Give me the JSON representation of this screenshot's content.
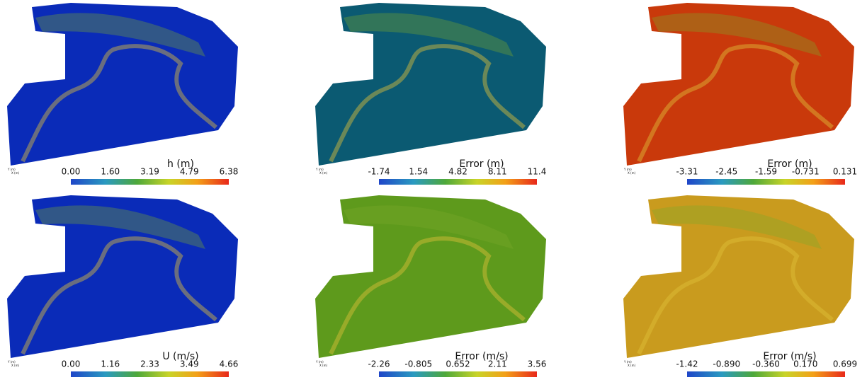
{
  "panels": [
    {
      "title": "h (m)",
      "ticks": [
        "0.00",
        "1.60",
        "3.19",
        "4.79",
        "6.38"
      ],
      "color": "#0a2bb8"
    },
    {
      "title": "Error (m)",
      "ticks": [
        "-1.74",
        "1.54",
        "4.82",
        "8.11",
        "11.4"
      ],
      "color": "#0b5a72"
    },
    {
      "title": "Error (m)",
      "ticks": [
        "-3.31",
        "-2.45",
        "-1.59",
        "-0.731",
        "0.131"
      ],
      "color": "#c9390b"
    },
    {
      "title": "U (m/s)",
      "ticks": [
        "0.00",
        "1.16",
        "2.33",
        "3.49",
        "4.66"
      ],
      "color": "#0a2bb8"
    },
    {
      "title": "Error (m/s)",
      "ticks": [
        "-2.26",
        "-0.805",
        "0.652",
        "2.11",
        "3.56"
      ],
      "color": "#5e9a1c"
    },
    {
      "title": "Error (m/s)",
      "ticks": [
        "-1.42",
        "-0.890",
        "-0.360",
        "0.170",
        "0.699"
      ],
      "color": "#c99b1e"
    }
  ],
  "axis_labels": [
    "Y (m)",
    "X (m)"
  ]
}
